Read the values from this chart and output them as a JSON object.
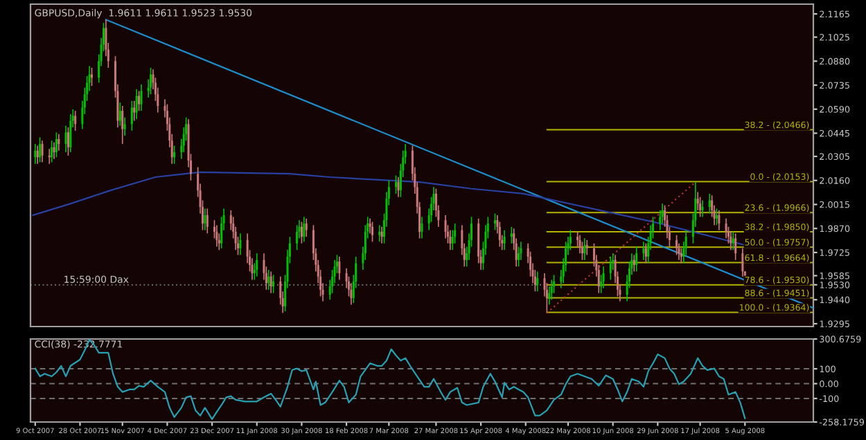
{
  "chart_data": [
    {
      "type": "candlestick",
      "title": "GBPUSD,Daily  1.9611 1.9611 1.9523 1.9530",
      "tick_labels": "y",
      "x": [
        "2007-10-09",
        "2007-10-10",
        "2007-10-11",
        "2007-10-12",
        "2007-10-15",
        "2007-10-16",
        "2007-10-17",
        "2007-10-18",
        "2007-10-19",
        "2007-10-22",
        "2007-10-23",
        "2007-10-24",
        "2007-10-25",
        "2007-10-26",
        "2007-10-29",
        "2007-10-30",
        "2007-10-31",
        "2007-11-01",
        "2007-11-02",
        "2007-11-05",
        "2007-11-06",
        "2007-11-07",
        "2007-11-08",
        "2007-11-09",
        "2007-11-12",
        "2007-11-13",
        "2007-11-14",
        "2007-11-15",
        "2007-11-16",
        "2007-11-19",
        "2007-11-20",
        "2007-11-21",
        "2007-11-22",
        "2007-11-23",
        "2007-11-26",
        "2007-11-27",
        "2007-11-28",
        "2007-11-29",
        "2007-11-30",
        "2007-12-03",
        "2007-12-04",
        "2007-12-05",
        "2007-12-06",
        "2007-12-07",
        "2007-12-10",
        "2007-12-11",
        "2007-12-12",
        "2007-12-13",
        "2007-12-14",
        "2007-12-17",
        "2007-12-18",
        "2007-12-19",
        "2007-12-20",
        "2007-12-21",
        "2007-12-24",
        "2007-12-25",
        "2007-12-26",
        "2007-12-27",
        "2007-12-28",
        "2007-12-31",
        "2008-01-01",
        "2008-01-02",
        "2008-01-03",
        "2008-01-04",
        "2008-01-07",
        "2008-01-08",
        "2008-01-09",
        "2008-01-10",
        "2008-01-11",
        "2008-01-14",
        "2008-01-15",
        "2008-01-16",
        "2008-01-17",
        "2008-01-18",
        "2008-01-21",
        "2008-01-22",
        "2008-01-23",
        "2008-01-24",
        "2008-01-25",
        "2008-01-28",
        "2008-01-29",
        "2008-01-30",
        "2008-01-31",
        "2008-02-01",
        "2008-02-04",
        "2008-02-05",
        "2008-02-06",
        "2008-02-07",
        "2008-02-08",
        "2008-02-11",
        "2008-02-12",
        "2008-02-13",
        "2008-02-14",
        "2008-02-15",
        "2008-02-18",
        "2008-02-19",
        "2008-02-20",
        "2008-02-21",
        "2008-02-22",
        "2008-02-25",
        "2008-02-26",
        "2008-02-27",
        "2008-02-28",
        "2008-02-29",
        "2008-03-03",
        "2008-03-04",
        "2008-03-05",
        "2008-03-06",
        "2008-03-07",
        "2008-03-10",
        "2008-03-11",
        "2008-03-12",
        "2008-03-13",
        "2008-03-14",
        "2008-03-17",
        "2008-03-18",
        "2008-03-19",
        "2008-03-20",
        "2008-03-21",
        "2008-03-24",
        "2008-03-25",
        "2008-03-26",
        "2008-03-27",
        "2008-03-28",
        "2008-03-31",
        "2008-04-01",
        "2008-04-02",
        "2008-04-03",
        "2008-04-04",
        "2008-04-07",
        "2008-04-08",
        "2008-04-09",
        "2008-04-10",
        "2008-04-11",
        "2008-04-14",
        "2008-04-15",
        "2008-04-16",
        "2008-04-17",
        "2008-04-18",
        "2008-04-21",
        "2008-04-22",
        "2008-04-23",
        "2008-04-24",
        "2008-04-25",
        "2008-04-28",
        "2008-04-29",
        "2008-04-30",
        "2008-05-01",
        "2008-05-02",
        "2008-05-05",
        "2008-05-06",
        "2008-05-07",
        "2008-05-08",
        "2008-05-09",
        "2008-05-12",
        "2008-05-13",
        "2008-05-14",
        "2008-05-15",
        "2008-05-16",
        "2008-05-19",
        "2008-05-20",
        "2008-05-21",
        "2008-05-22",
        "2008-05-23",
        "2008-05-26",
        "2008-05-27",
        "2008-05-28",
        "2008-05-29",
        "2008-05-30",
        "2008-06-02",
        "2008-06-03",
        "2008-06-04",
        "2008-06-05",
        "2008-06-06",
        "2008-06-09",
        "2008-06-10",
        "2008-06-11",
        "2008-06-12",
        "2008-06-13",
        "2008-06-16",
        "2008-06-17",
        "2008-06-18",
        "2008-06-19",
        "2008-06-20",
        "2008-06-23",
        "2008-06-24",
        "2008-06-25",
        "2008-06-26",
        "2008-06-27",
        "2008-06-30",
        "2008-07-01",
        "2008-07-02",
        "2008-07-03",
        "2008-07-04",
        "2008-07-07",
        "2008-07-08",
        "2008-07-09",
        "2008-07-10",
        "2008-07-11",
        "2008-07-14",
        "2008-07-15",
        "2008-07-16",
        "2008-07-17",
        "2008-07-18",
        "2008-07-21",
        "2008-07-22",
        "2008-07-23",
        "2008-07-24",
        "2008-07-25",
        "2008-07-28",
        "2008-07-29",
        "2008-07-30",
        "2008-07-31",
        "2008-08-01",
        "2008-08-04",
        "2008-08-05"
      ],
      "ohlc": [
        [
          2.03,
          2.038,
          2.026,
          2.034
        ],
        [
          2.034,
          2.037,
          2.026,
          2.03
        ],
        [
          2.03,
          2.042,
          2.027,
          2.038
        ],
        [
          2.038,
          2.04,
          2.027,
          2.031
        ],
        [
          2.031,
          2.035,
          2.026,
          2.03
        ],
        [
          2.03,
          2.04,
          2.027,
          2.036
        ],
        [
          2.036,
          2.039,
          2.029,
          2.033
        ],
        [
          2.033,
          2.045,
          2.03,
          2.041
        ],
        [
          2.041,
          2.044,
          2.034,
          2.038
        ],
        [
          2.038,
          2.049,
          2.033,
          2.045
        ],
        [
          2.045,
          2.048,
          2.031,
          2.036
        ],
        [
          2.036,
          2.056,
          2.033,
          2.052
        ],
        [
          2.052,
          2.059,
          2.048,
          2.055
        ],
        [
          2.055,
          2.058,
          2.046,
          2.05
        ],
        [
          2.05,
          2.064,
          2.047,
          2.06
        ],
        [
          2.06,
          2.072,
          2.056,
          2.068
        ],
        [
          2.068,
          2.079,
          2.064,
          2.075
        ],
        [
          2.075,
          2.085,
          2.07,
          2.08
        ],
        [
          2.08,
          2.084,
          2.073,
          2.078
        ],
        [
          2.078,
          2.092,
          2.075,
          2.088
        ],
        [
          2.088,
          2.102,
          2.085,
          2.098
        ],
        [
          2.098,
          2.111,
          2.094,
          2.108
        ],
        [
          2.108,
          2.113,
          2.091,
          2.095
        ],
        [
          2.095,
          2.099,
          2.084,
          2.088
        ],
        [
          2.088,
          2.091,
          2.066,
          2.07
        ],
        [
          2.07,
          2.074,
          2.048,
          2.052
        ],
        [
          2.052,
          2.063,
          2.049,
          2.058
        ],
        [
          2.058,
          2.061,
          2.038,
          2.047
        ],
        [
          2.047,
          2.054,
          2.043,
          2.05
        ],
        [
          2.05,
          2.064,
          2.046,
          2.06
        ],
        [
          2.06,
          2.064,
          2.052,
          2.057
        ],
        [
          2.057,
          2.071,
          2.053,
          2.067
        ],
        [
          2.067,
          2.07,
          2.058,
          2.062
        ],
        [
          2.062,
          2.074,
          2.058,
          2.07
        ],
        [
          2.07,
          2.077,
          2.066,
          2.072
        ],
        [
          2.072,
          2.084,
          2.068,
          2.08
        ],
        [
          2.08,
          2.083,
          2.071,
          2.075
        ],
        [
          2.075,
          2.078,
          2.064,
          2.068
        ],
        [
          2.068,
          2.072,
          2.057,
          2.061
        ],
        [
          2.061,
          2.065,
          2.054,
          2.058
        ],
        [
          2.058,
          2.062,
          2.046,
          2.05
        ],
        [
          2.05,
          2.054,
          2.036,
          2.04
        ],
        [
          2.04,
          2.044,
          2.026,
          2.03
        ],
        [
          2.03,
          2.037,
          2.026,
          2.033
        ],
        [
          2.033,
          2.041,
          2.029,
          2.037
        ],
        [
          2.037,
          2.048,
          2.033,
          2.044
        ],
        [
          2.044,
          2.054,
          2.04,
          2.05
        ],
        [
          2.05,
          2.053,
          2.024,
          2.028
        ],
        [
          2.028,
          2.032,
          2.016,
          2.02
        ],
        [
          2.02,
          2.024,
          2.006,
          2.01
        ],
        [
          2.01,
          2.014,
          1.996,
          2.0
        ],
        [
          2.0,
          2.004,
          1.986,
          1.99
        ],
        [
          1.99,
          1.999,
          1.986,
          1.995
        ],
        [
          1.995,
          1.999,
          1.984,
          1.988
        ],
        [
          1.988,
          1.992,
          1.981,
          1.985
        ],
        [
          1.985,
          1.989,
          1.976,
          1.98
        ],
        [
          1.98,
          1.984,
          1.974,
          1.978
        ],
        [
          1.978,
          1.994,
          1.975,
          1.99
        ],
        [
          1.99,
          1.999,
          1.986,
          1.995
        ],
        [
          1.995,
          1.998,
          1.986,
          1.99
        ],
        [
          1.99,
          1.994,
          1.981,
          1.985
        ],
        [
          1.985,
          1.988,
          1.974,
          1.978
        ],
        [
          1.978,
          1.982,
          1.971,
          1.975
        ],
        [
          1.975,
          1.984,
          1.971,
          1.98
        ],
        [
          1.98,
          1.984,
          1.966,
          1.97
        ],
        [
          1.97,
          1.974,
          1.961,
          1.965
        ],
        [
          1.965,
          1.969,
          1.956,
          1.96
        ],
        [
          1.96,
          1.966,
          1.956,
          1.962
        ],
        [
          1.962,
          1.972,
          1.958,
          1.968
        ],
        [
          1.968,
          1.972,
          1.956,
          1.96
        ],
        [
          1.96,
          1.964,
          1.95,
          1.954
        ],
        [
          1.954,
          1.962,
          1.95,
          1.958
        ],
        [
          1.958,
          1.961,
          1.948,
          1.952
        ],
        [
          1.952,
          1.959,
          1.948,
          1.955
        ],
        [
          1.955,
          1.958,
          1.941,
          1.945
        ],
        [
          1.945,
          1.949,
          1.936,
          1.94
        ],
        [
          1.94,
          1.959,
          1.937,
          1.955
        ],
        [
          1.955,
          1.974,
          1.951,
          1.97
        ],
        [
          1.97,
          1.982,
          1.966,
          1.978
        ],
        [
          1.978,
          1.989,
          1.974,
          1.985
        ],
        [
          1.985,
          1.992,
          1.981,
          1.988
        ],
        [
          1.988,
          1.991,
          1.978,
          1.982
        ],
        [
          1.982,
          1.994,
          1.979,
          1.99
        ],
        [
          1.99,
          1.993,
          1.982,
          1.986
        ],
        [
          1.986,
          1.989,
          1.968,
          1.972
        ],
        [
          1.972,
          1.975,
          1.961,
          1.965
        ],
        [
          1.965,
          1.968,
          1.954,
          1.958
        ],
        [
          1.958,
          1.962,
          1.946,
          1.95
        ],
        [
          1.95,
          1.954,
          1.943,
          1.947
        ],
        [
          1.947,
          1.956,
          1.944,
          1.952
        ],
        [
          1.952,
          1.962,
          1.948,
          1.958
        ],
        [
          1.958,
          1.968,
          1.954,
          1.964
        ],
        [
          1.964,
          1.971,
          1.96,
          1.967
        ],
        [
          1.967,
          1.97,
          1.956,
          1.96
        ],
        [
          1.96,
          1.963,
          1.951,
          1.955
        ],
        [
          1.955,
          1.958,
          1.946,
          1.95
        ],
        [
          1.95,
          1.954,
          1.941,
          1.945
        ],
        [
          1.945,
          1.959,
          1.942,
          1.955
        ],
        [
          1.955,
          1.97,
          1.951,
          1.966
        ],
        [
          1.966,
          1.976,
          1.962,
          1.972
        ],
        [
          1.972,
          1.989,
          1.968,
          1.985
        ],
        [
          1.985,
          1.994,
          1.981,
          1.99
        ],
        [
          1.99,
          1.993,
          1.984,
          1.988
        ],
        [
          1.988,
          1.991,
          1.979,
          1.983
        ],
        [
          1.983,
          1.989,
          1.979,
          1.985
        ],
        [
          1.985,
          1.988,
          1.978,
          1.982
        ],
        [
          1.982,
          1.996,
          1.978,
          1.992
        ],
        [
          1.992,
          2.009,
          1.988,
          2.005
        ],
        [
          2.005,
          2.016,
          2.001,
          2.012
        ],
        [
          2.012,
          2.019,
          2.008,
          2.015
        ],
        [
          2.015,
          2.018,
          2.006,
          2.01
        ],
        [
          2.01,
          2.026,
          2.006,
          2.022
        ],
        [
          2.022,
          2.034,
          2.018,
          2.03
        ],
        [
          2.03,
          2.038,
          2.026,
          2.034
        ],
        [
          2.034,
          2.037,
          2.016,
          2.02
        ],
        [
          2.02,
          2.024,
          2.008,
          2.012
        ],
        [
          2.012,
          2.015,
          1.996,
          2.0
        ],
        [
          2.0,
          2.003,
          1.981,
          1.985
        ],
        [
          1.985,
          1.994,
          1.981,
          1.99
        ],
        [
          1.99,
          1.999,
          1.986,
          1.995
        ],
        [
          1.995,
          2.006,
          1.991,
          2.002
        ],
        [
          2.002,
          2.012,
          1.998,
          2.008
        ],
        [
          2.008,
          2.011,
          1.994,
          1.998
        ],
        [
          1.998,
          2.001,
          1.988,
          1.992
        ],
        [
          1.992,
          1.995,
          1.981,
          1.985
        ],
        [
          1.985,
          1.989,
          1.978,
          1.982
        ],
        [
          1.982,
          1.986,
          1.974,
          1.978
        ],
        [
          1.978,
          1.986,
          1.974,
          1.982
        ],
        [
          1.982,
          1.99,
          1.978,
          1.986
        ],
        [
          1.986,
          1.989,
          1.971,
          1.975
        ],
        [
          1.975,
          1.978,
          1.964,
          1.968
        ],
        [
          1.968,
          1.976,
          1.964,
          1.972
        ],
        [
          1.972,
          1.984,
          1.968,
          1.98
        ],
        [
          1.98,
          1.994,
          1.976,
          1.99
        ],
        [
          1.99,
          1.993,
          1.966,
          1.97
        ],
        [
          1.97,
          1.974,
          1.962,
          1.966
        ],
        [
          1.966,
          1.979,
          1.962,
          1.975
        ],
        [
          1.975,
          1.989,
          1.971,
          1.985
        ],
        [
          1.985,
          1.994,
          1.981,
          1.99
        ],
        [
          1.99,
          1.996,
          1.986,
          1.992
        ],
        [
          1.992,
          1.995,
          1.984,
          1.988
        ],
        [
          1.988,
          1.991,
          1.976,
          1.98
        ],
        [
          1.98,
          1.983,
          1.974,
          1.978
        ],
        [
          1.978,
          1.986,
          1.974,
          1.982
        ],
        [
          1.982,
          1.988,
          1.978,
          1.984
        ],
        [
          1.984,
          1.987,
          1.974,
          1.978
        ],
        [
          1.978,
          1.981,
          1.964,
          1.968
        ],
        [
          1.968,
          1.976,
          1.964,
          1.972
        ],
        [
          1.972,
          1.979,
          1.968,
          1.975
        ],
        [
          1.975,
          1.978,
          1.966,
          1.97
        ],
        [
          1.97,
          1.973,
          1.958,
          1.962
        ],
        [
          1.962,
          1.966,
          1.954,
          1.958
        ],
        [
          1.958,
          1.962,
          1.949,
          1.953
        ],
        [
          1.953,
          1.961,
          1.949,
          1.957
        ],
        [
          1.957,
          1.96,
          1.946,
          1.95
        ],
        [
          1.95,
          1.954,
          1.936,
          1.945
        ],
        [
          1.945,
          1.952,
          1.941,
          1.948
        ],
        [
          1.948,
          1.956,
          1.944,
          1.952
        ],
        [
          1.952,
          1.959,
          1.948,
          1.955
        ],
        [
          1.955,
          1.962,
          1.951,
          1.958
        ],
        [
          1.958,
          1.969,
          1.954,
          1.965
        ],
        [
          1.965,
          1.979,
          1.961,
          1.975
        ],
        [
          1.975,
          1.982,
          1.971,
          1.978
        ],
        [
          1.978,
          1.986,
          1.974,
          1.982
        ],
        [
          1.982,
          1.985,
          1.976,
          1.98
        ],
        [
          1.98,
          1.983,
          1.972,
          1.976
        ],
        [
          1.976,
          1.979,
          1.968,
          1.972
        ],
        [
          1.972,
          1.981,
          1.968,
          1.977
        ],
        [
          1.977,
          1.98,
          1.971,
          1.975
        ],
        [
          1.975,
          1.978,
          1.964,
          1.968
        ],
        [
          1.968,
          1.971,
          1.958,
          1.962
        ],
        [
          1.962,
          1.965,
          1.948,
          1.952
        ],
        [
          1.952,
          1.959,
          1.948,
          1.955
        ],
        [
          1.955,
          1.964,
          1.951,
          1.96
        ],
        [
          1.96,
          1.97,
          1.956,
          1.966
        ],
        [
          1.966,
          1.972,
          1.962,
          1.968
        ],
        [
          1.968,
          1.971,
          1.954,
          1.958
        ],
        [
          1.958,
          1.961,
          1.946,
          1.95
        ],
        [
          1.95,
          1.953,
          1.943,
          1.947
        ],
        [
          1.947,
          1.959,
          1.943,
          1.955
        ],
        [
          1.955,
          1.967,
          1.951,
          1.963
        ],
        [
          1.963,
          1.972,
          1.959,
          1.968
        ],
        [
          1.968,
          1.971,
          1.961,
          1.965
        ],
        [
          1.965,
          1.976,
          1.961,
          1.972
        ],
        [
          1.972,
          1.979,
          1.968,
          1.975
        ],
        [
          1.975,
          1.978,
          1.966,
          1.97
        ],
        [
          1.97,
          1.982,
          1.966,
          1.978
        ],
        [
          1.978,
          1.989,
          1.974,
          1.985
        ],
        [
          1.985,
          1.994,
          1.981,
          1.99
        ],
        [
          1.99,
          1.998,
          1.986,
          1.994
        ],
        [
          1.994,
          2.002,
          1.99,
          1.998
        ],
        [
          1.998,
          2.001,
          1.988,
          1.992
        ],
        [
          1.992,
          1.995,
          1.981,
          1.985
        ],
        [
          1.985,
          1.988,
          1.976,
          1.98
        ],
        [
          1.98,
          1.983,
          1.971,
          1.975
        ],
        [
          1.975,
          1.978,
          1.968,
          1.972
        ],
        [
          1.972,
          1.975,
          1.966,
          1.97
        ],
        [
          1.97,
          1.979,
          1.966,
          1.975
        ],
        [
          1.975,
          1.986,
          1.971,
          1.982
        ],
        [
          1.982,
          1.996,
          1.978,
          1.992
        ],
        [
          1.992,
          2.015,
          1.988,
          2.005
        ],
        [
          2.005,
          2.009,
          1.998,
          2.002
        ],
        [
          2.002,
          2.006,
          1.994,
          1.998
        ],
        [
          1.998,
          2.004,
          1.994,
          2.0
        ],
        [
          2.0,
          2.008,
          1.996,
          2.004
        ],
        [
          2.004,
          2.007,
          1.994,
          1.998
        ],
        [
          1.998,
          2.001,
          1.989,
          1.993
        ],
        [
          1.993,
          1.999,
          1.989,
          1.995
        ],
        [
          1.995,
          1.998,
          1.986,
          1.99
        ],
        [
          1.99,
          1.993,
          1.981,
          1.985
        ],
        [
          1.985,
          1.988,
          1.978,
          1.982
        ],
        [
          1.982,
          1.985,
          1.974,
          1.978
        ],
        [
          1.978,
          1.985,
          1.974,
          1.981
        ],
        [
          1.981,
          1.984,
          1.968,
          1.972
        ],
        [
          1.972,
          1.975,
          1.958,
          1.9611
        ],
        [
          1.9611,
          1.9611,
          1.9523,
          1.953
        ]
      ],
      "series": [
        {
          "type": "line",
          "x": [
            "2007-11-08",
            "2008-09-03"
          ],
          "values": [
            2.113,
            1.939
          ],
          "color": "#1e8cc8"
        },
        {
          "type": "line",
          "x": [
            "2007-10-08",
            "2007-10-24",
            "2007-11-10",
            "2007-11-29",
            "2007-12-18",
            "2008-01-25",
            "2008-02-11",
            "2008-03-20",
            "2008-04-11",
            "2008-05-03",
            "2008-06-27",
            "2008-08-05"
          ],
          "values": [
            1.995,
            2.002,
            2.01,
            2.018,
            2.021,
            2.02,
            2.018,
            2.015,
            2.011,
            2.008,
            1.991,
            1.977
          ],
          "color": "#2840a0"
        },
        {
          "type": "line",
          "x": [
            "2008-05-13",
            "2008-07-15"
          ],
          "values": [
            1.936,
            2.015
          ],
          "color": "#b43232",
          "line_style": "dotted"
        }
      ],
      "ref_lines": [
        {
          "axis": "y",
          "value": 1.953,
          "color": "#707070",
          "line_style": "dotted"
        },
        {
          "axis": "y",
          "value": 2.0466,
          "label": "38.2 - (2.0466)",
          "color": "#b4b400"
        },
        {
          "axis": "y",
          "value": 2.0153,
          "label": "0.0 - (2.0153)",
          "color": "#b4b400"
        },
        {
          "axis": "y",
          "value": 1.9966,
          "label": "23.6 - (1.9966)",
          "color": "#b4b400"
        },
        {
          "axis": "y",
          "value": 1.985,
          "label": "38.2 - (1.9850)",
          "color": "#b4b400"
        },
        {
          "axis": "y",
          "value": 1.9757,
          "label": "50.0 - (1.9757)",
          "color": "#b4b400"
        },
        {
          "axis": "y",
          "value": 1.9664,
          "label": "61.8 - (1.9664)",
          "color": "#b4b400"
        },
        {
          "axis": "y",
          "value": 1.953,
          "label": "78.6 - (1.9530)",
          "color": "#b4b400"
        },
        {
          "axis": "y",
          "value": 1.9451,
          "label": "88.6 - (1.9451)",
          "color": "#b4b400"
        },
        {
          "axis": "y",
          "value": 1.9364,
          "label": "100.0 - (1.9364)",
          "color": "#b4b400"
        }
      ],
      "annotations": [
        {
          "text": "15:59:00 Dax",
          "x": "2007-10-21",
          "y": 1.953
        }
      ],
      "xlim": [
        "2007-10-07",
        "2008-09-03"
      ],
      "ylim": [
        1.9278,
        2.1224
      ],
      "yticks": [
        2.1165,
        2.1025,
        {
          "value": 2.088,
          "label": "2.0880"
        },
        2.0735,
        {
          "value": 2.059,
          "label": "2.0590"
        },
        2.0445,
        2.0305,
        {
          "value": 2.016,
          "label": "2.0160"
        },
        2.0015,
        {
          "value": 1.987,
          "label": "1.9870"
        },
        1.9725,
        1.9585,
        {
          "value": 1.953,
          "label": "1.9530"
        },
        {
          "value": 1.944,
          "label": "1.9440"
        },
        1.9295
      ]
    },
    {
      "type": "line",
      "title": "CCI(38) -232.7771",
      "series": [
        {
          "color": "#28a0b4",
          "x": [
            "2007-10-09",
            "2007-10-11",
            "2007-10-13",
            "2007-10-16",
            "2007-10-18",
            "2007-10-20",
            "2007-10-22",
            "2007-10-24",
            "2007-10-28",
            "2007-10-30",
            "2007-11-01",
            "2007-11-03",
            "2007-11-05",
            "2007-11-09",
            "2007-11-11",
            "2007-11-13",
            "2007-11-15",
            "2007-11-18",
            "2007-11-20",
            "2007-11-22",
            "2007-11-24",
            "2007-11-27",
            "2007-11-30",
            "2007-12-03",
            "2007-12-05",
            "2007-12-07",
            "2007-12-10",
            "2007-12-12",
            "2007-12-14",
            "2007-12-16",
            "2007-12-18",
            "2007-12-20",
            "2007-12-23",
            "2007-12-25",
            "2007-12-27",
            "2007-12-29",
            "2007-12-31",
            "2008-01-02",
            "2008-01-06",
            "2008-01-11",
            "2008-01-14",
            "2008-01-17",
            "2008-01-19",
            "2008-01-21",
            "2008-01-24",
            "2008-01-26",
            "2008-01-28",
            "2008-01-30",
            "2008-02-01",
            "2008-02-04",
            "2008-02-05",
            "2008-02-07",
            "2008-02-09",
            "2008-02-12",
            "2008-02-15",
            "2008-02-17",
            "2008-02-19",
            "2008-02-22",
            "2008-02-24",
            "2008-02-28",
            "2008-03-02",
            "2008-03-04",
            "2008-03-06",
            "2008-03-08",
            "2008-03-10",
            "2008-03-12",
            "2008-03-14",
            "2008-03-16",
            "2008-03-19",
            "2008-03-22",
            "2008-03-24",
            "2008-03-26",
            "2008-03-29",
            "2008-03-31",
            "2008-04-02",
            "2008-04-05",
            "2008-04-07",
            "2008-04-09",
            "2008-04-14",
            "2008-04-16",
            "2008-04-19",
            "2008-04-21",
            "2008-04-24",
            "2008-04-25",
            "2008-04-27",
            "2008-04-29",
            "2008-05-01",
            "2008-05-03",
            "2008-05-05",
            "2008-05-08",
            "2008-05-10",
            "2008-05-13",
            "2008-05-16",
            "2008-05-19",
            "2008-05-21",
            "2008-05-23",
            "2008-05-26",
            "2008-05-29",
            "2008-06-01",
            "2008-06-04",
            "2008-06-07",
            "2008-06-10",
            "2008-06-12",
            "2008-06-14",
            "2008-06-16",
            "2008-06-18",
            "2008-06-21",
            "2008-06-23",
            "2008-06-25",
            "2008-06-27",
            "2008-06-29",
            "2008-07-02",
            "2008-07-04",
            "2008-07-06",
            "2008-07-08",
            "2008-07-10",
            "2008-07-13",
            "2008-07-16",
            "2008-07-18",
            "2008-07-20",
            "2008-07-23",
            "2008-07-25",
            "2008-07-27",
            "2008-07-29",
            "2008-08-01",
            "2008-08-03",
            "2008-08-05"
          ],
          "values": [
            102,
            49,
            67,
            49,
            77,
            120,
            49,
            120,
            162,
            225,
            296,
            260,
            208,
            208,
            67,
            -21,
            -56,
            -39,
            -39,
            -14,
            -21,
            21,
            -21,
            -56,
            -162,
            -225,
            -162,
            -92,
            -84,
            -180,
            -215,
            -162,
            -239,
            -190,
            -144,
            -92,
            -84,
            -109,
            -120,
            -120,
            -92,
            -67,
            -109,
            -155,
            -21,
            92,
            102,
            84,
            92,
            -39,
            14,
            -144,
            -127,
            -56,
            21,
            -21,
            -127,
            -74,
            49,
            137,
            120,
            120,
            155,
            232,
            190,
            155,
            172,
            120,
            49,
            -21,
            -21,
            32,
            -56,
            -109,
            -56,
            -28,
            -127,
            -144,
            -127,
            -21,
            67,
            14,
            -92,
            7,
            -39,
            -21,
            -39,
            -56,
            -92,
            -215,
            -215,
            -180,
            -109,
            -74,
            -4,
            49,
            67,
            49,
            32,
            -14,
            56,
            32,
            -39,
            -120,
            -56,
            32,
            14,
            -21,
            84,
            137,
            197,
            172,
            102,
            67,
            -4,
            14,
            67,
            172,
            120,
            92,
            102,
            49,
            32,
            -74,
            -56,
            -127,
            -232.7771
          ]
        }
      ],
      "ref_lines": [
        {
          "axis": "y",
          "value": 100,
          "color": "#707070",
          "line_style": "dashed"
        },
        {
          "axis": "y",
          "value": 0,
          "color": "#707070",
          "line_style": "dashed"
        },
        {
          "axis": "y",
          "value": -100,
          "color": "#707070",
          "line_style": "dashed"
        }
      ],
      "xlim": [
        "2007-10-07",
        "2008-09-03"
      ],
      "ylim": [
        -258.1759,
        300.6759
      ],
      "yticks": [
        300.6759,
        100,
        {
          "value": 0,
          "label": "0.00"
        },
        -100,
        -258.1759
      ],
      "xticks": [
        {
          "value": "2007-10-09",
          "label": "9 Oct 2007"
        },
        {
          "value": "2007-10-28",
          "label": "28 Oct 2007"
        },
        {
          "value": "2007-11-15",
          "label": "15 Nov 2007"
        },
        {
          "value": "2007-12-04",
          "label": "4 Dec 2007"
        },
        {
          "value": "2007-12-23",
          "label": "23 Dec 2007"
        },
        {
          "value": "2008-01-11",
          "label": "11 Jan 2008"
        },
        {
          "value": "2008-01-30",
          "label": "30 Jan 2008"
        },
        {
          "value": "2008-02-18",
          "label": "18 Feb 2008"
        },
        {
          "value": "2008-03-07",
          "label": "7 Mar 2008"
        },
        {
          "value": "2008-03-27",
          "label": "27 Mar 2008"
        },
        {
          "value": "2008-04-15",
          "label": "15 Apr 2008"
        },
        {
          "value": "2008-05-04",
          "label": "4 May 2008"
        },
        {
          "value": "2008-05-22",
          "label": "22 May 2008"
        },
        {
          "value": "2008-06-10",
          "label": "10 Jun 2008"
        },
        {
          "value": "2008-06-29",
          "label": "29 Jun 2008"
        },
        {
          "value": "2008-07-17",
          "label": "17 Jul 2008"
        },
        {
          "value": "2008-08-05",
          "label": "5 Aug 2008"
        }
      ]
    }
  ]
}
